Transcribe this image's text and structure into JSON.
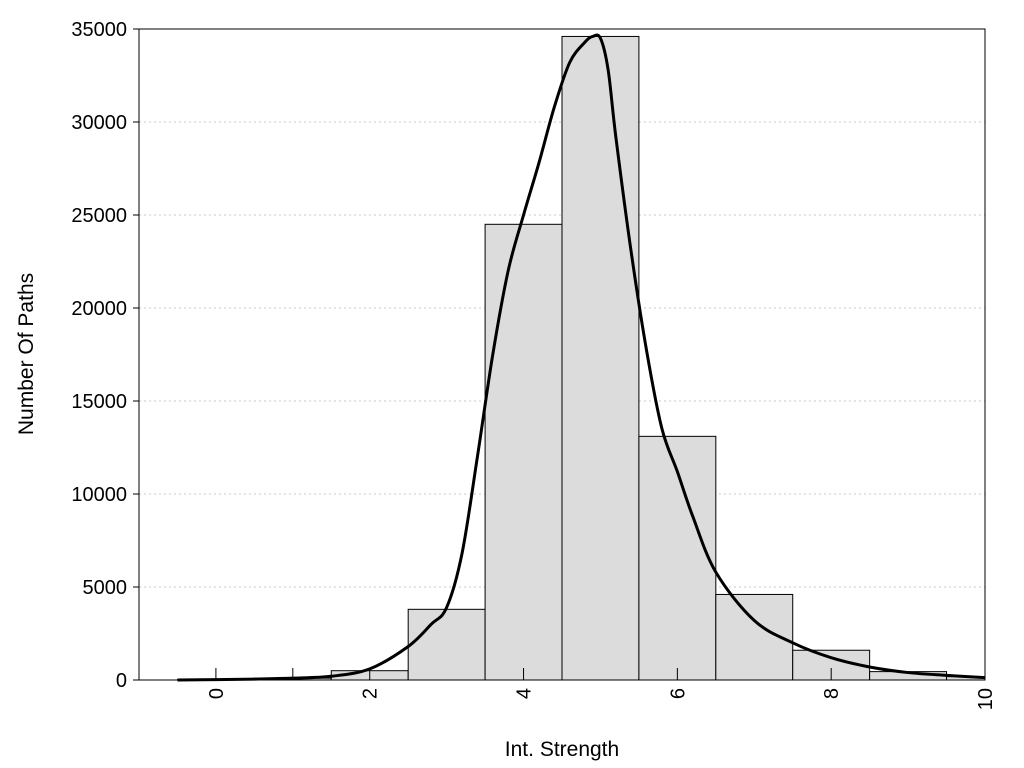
{
  "chart_data": {
    "type": "bar",
    "title": "",
    "xlabel": "Int. Strength",
    "ylabel": "Number Of Paths",
    "xlim": [
      -1,
      10
    ],
    "ylim": [
      0,
      35000
    ],
    "grid": "horizontal-dotted",
    "legend": "none",
    "x_ticks": [
      0,
      2,
      4,
      6,
      8,
      10
    ],
    "x_tick_labels": [
      "0",
      "2",
      "4",
      "6",
      "8",
      "10"
    ],
    "y_ticks": [
      0,
      5000,
      10000,
      15000,
      20000,
      25000,
      30000,
      35000
    ],
    "y_tick_labels": [
      "0",
      "5000",
      "10000",
      "15000",
      "20000",
      "25000",
      "30000",
      "35000"
    ],
    "bin_width": 1,
    "bars": {
      "x": [
        0,
        1,
        2,
        3,
        4,
        5,
        6,
        7,
        8,
        9,
        10
      ],
      "values": [
        20,
        100,
        500,
        3800,
        24500,
        34600,
        13100,
        4600,
        1600,
        450,
        180
      ]
    },
    "curve": {
      "x": [
        -0.5,
        0,
        0.5,
        1,
        1.5,
        2,
        2.5,
        2.8,
        3,
        3.2,
        3.4,
        3.6,
        3.8,
        4,
        4.2,
        4.4,
        4.6,
        4.8,
        4.9,
        5,
        5.1,
        5.2,
        5.4,
        5.6,
        5.8,
        6,
        6.2,
        6.5,
        7,
        7.5,
        8,
        8.5,
        9,
        9.5,
        10
      ],
      "y": [
        0,
        20,
        50,
        100,
        200,
        600,
        1800,
        3000,
        3900,
        6800,
        12000,
        17500,
        22000,
        25000,
        27800,
        30800,
        33200,
        34300,
        34600,
        34500,
        32800,
        29200,
        23000,
        17700,
        13500,
        11200,
        8800,
        5800,
        3200,
        2000,
        1200,
        700,
        400,
        250,
        130
      ],
      "color": "#000000"
    },
    "colors": {
      "bar_fill": "#dcdcdc",
      "bar_stroke": "#000000",
      "grid": "#c8c8c8",
      "frame": "#000000"
    }
  }
}
